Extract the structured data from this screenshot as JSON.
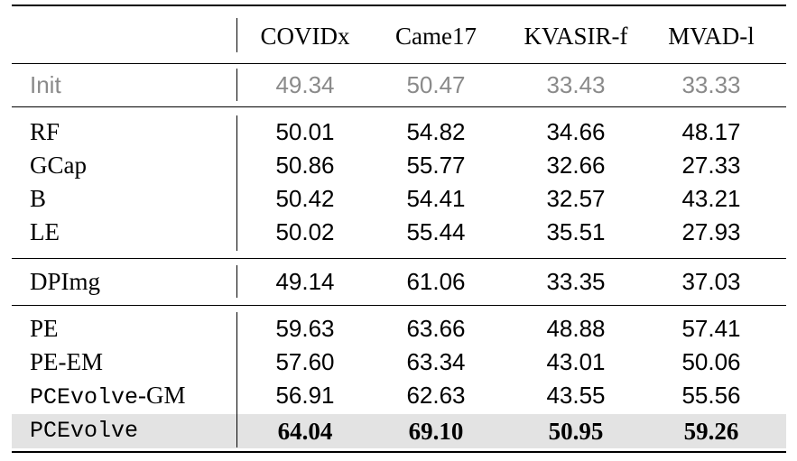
{
  "table": {
    "columns": [
      "COVIDx",
      "Came17",
      "KVASIR-f",
      "MVAD-l"
    ],
    "rows": [
      {
        "label": "Init",
        "values": [
          "49.34",
          "50.47",
          "33.43",
          "33.33"
        ]
      },
      {
        "label": "RF",
        "values": [
          "50.01",
          "54.82",
          "34.66",
          "48.17"
        ]
      },
      {
        "label": "GCap",
        "values": [
          "50.86",
          "55.77",
          "32.66",
          "27.33"
        ]
      },
      {
        "label": "B",
        "values": [
          "50.42",
          "54.41",
          "32.57",
          "43.21"
        ]
      },
      {
        "label": "LE",
        "values": [
          "50.02",
          "55.44",
          "35.51",
          "27.93"
        ]
      },
      {
        "label": "DPImg",
        "values": [
          "49.14",
          "61.06",
          "33.35",
          "37.03"
        ]
      },
      {
        "label": "PE",
        "values": [
          "59.63",
          "63.66",
          "48.88",
          "57.41"
        ]
      },
      {
        "label": "PE-EM",
        "values": [
          "57.60",
          "63.34",
          "43.01",
          "50.06"
        ]
      },
      {
        "label_mono": "PCEvolve",
        "label_suffix": "-GM",
        "values": [
          "56.91",
          "62.63",
          "43.55",
          "55.56"
        ]
      },
      {
        "label": "PCEvolve",
        "values": [
          "64.04",
          "69.10",
          "50.95",
          "59.26"
        ]
      }
    ]
  }
}
